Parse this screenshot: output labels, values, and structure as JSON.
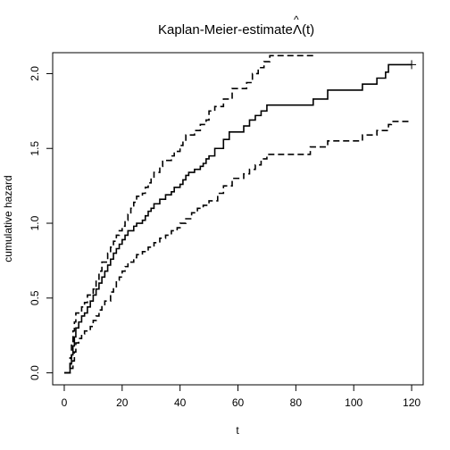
{
  "chart_data": {
    "type": "line",
    "title": "Kaplan-Meier-estimate",
    "title_symbol": "Λ",
    "title_hat": "^",
    "title_arg": "(t)",
    "xlabel": "t",
    "ylabel": "cumulative hazard",
    "xlim": [
      -4,
      124
    ],
    "ylim": [
      -0.08,
      2.14
    ],
    "x_ticks": [
      0,
      20,
      40,
      60,
      80,
      100,
      120
    ],
    "y_ticks": [
      0.0,
      0.5,
      1.0,
      1.5,
      2.0
    ],
    "x_tick_labels": [
      "0",
      "20",
      "40",
      "60",
      "80",
      "100",
      "120"
    ],
    "y_tick_labels": [
      "0.0",
      "0.5",
      "1.0",
      "1.5",
      "2.0"
    ],
    "grid": false,
    "censor_mark": {
      "x": 120,
      "y": 2.06
    },
    "series": [
      {
        "name": "estimate",
        "style": "solid",
        "steps": [
          [
            0,
            0
          ],
          [
            2,
            0.06
          ],
          [
            2.5,
            0.12
          ],
          [
            3,
            0.18
          ],
          [
            3.5,
            0.24
          ],
          [
            4,
            0.3
          ],
          [
            5,
            0.34
          ],
          [
            6,
            0.38
          ],
          [
            7,
            0.4
          ],
          [
            8,
            0.44
          ],
          [
            9,
            0.48
          ],
          [
            10,
            0.52
          ],
          [
            11,
            0.56
          ],
          [
            12,
            0.6
          ],
          [
            13,
            0.64
          ],
          [
            14,
            0.68
          ],
          [
            15,
            0.72
          ],
          [
            16,
            0.76
          ],
          [
            17,
            0.8
          ],
          [
            18,
            0.83
          ],
          [
            19,
            0.86
          ],
          [
            20,
            0.89
          ],
          [
            21,
            0.92
          ],
          [
            22,
            0.95
          ],
          [
            24,
            0.98
          ],
          [
            25,
            1.0
          ],
          [
            27,
            1.02
          ],
          [
            28,
            1.05
          ],
          [
            29,
            1.08
          ],
          [
            30,
            1.1
          ],
          [
            31,
            1.13
          ],
          [
            33,
            1.16
          ],
          [
            35,
            1.19
          ],
          [
            37,
            1.21
          ],
          [
            38,
            1.24
          ],
          [
            40,
            1.26
          ],
          [
            41,
            1.29
          ],
          [
            42,
            1.32
          ],
          [
            43,
            1.34
          ],
          [
            45,
            1.36
          ],
          [
            47,
            1.38
          ],
          [
            48,
            1.4
          ],
          [
            49,
            1.43
          ],
          [
            50,
            1.45
          ],
          [
            52,
            1.5
          ],
          [
            55,
            1.56
          ],
          [
            57,
            1.61
          ],
          [
            62,
            1.65
          ],
          [
            64,
            1.69
          ],
          [
            66,
            1.72
          ],
          [
            68,
            1.75
          ],
          [
            70,
            1.79
          ],
          [
            86,
            1.83
          ],
          [
            91,
            1.89
          ],
          [
            103,
            1.93
          ],
          [
            108,
            1.97
          ],
          [
            111,
            2.01
          ],
          [
            112,
            2.06
          ],
          [
            120,
            2.06
          ]
        ]
      },
      {
        "name": "upper confidence bound",
        "style": "dashed",
        "steps": [
          [
            0,
            0
          ],
          [
            2,
            0.1
          ],
          [
            2.5,
            0.2
          ],
          [
            3,
            0.28
          ],
          [
            3.5,
            0.34
          ],
          [
            4,
            0.4
          ],
          [
            6,
            0.44
          ],
          [
            7,
            0.47
          ],
          [
            8,
            0.52
          ],
          [
            10,
            0.56
          ],
          [
            11,
            0.62
          ],
          [
            12,
            0.68
          ],
          [
            13,
            0.74
          ],
          [
            15,
            0.8
          ],
          [
            16,
            0.84
          ],
          [
            17,
            0.88
          ],
          [
            18,
            0.92
          ],
          [
            19,
            0.95
          ],
          [
            20,
            0.98
          ],
          [
            21,
            1.02
          ],
          [
            22,
            1.06
          ],
          [
            23,
            1.1
          ],
          [
            24,
            1.14
          ],
          [
            25,
            1.18
          ],
          [
            27,
            1.2
          ],
          [
            28,
            1.24
          ],
          [
            29,
            1.27
          ],
          [
            30,
            1.3
          ],
          [
            31,
            1.34
          ],
          [
            33,
            1.38
          ],
          [
            34,
            1.42
          ],
          [
            37,
            1.45
          ],
          [
            38,
            1.48
          ],
          [
            40,
            1.52
          ],
          [
            41,
            1.55
          ],
          [
            42,
            1.59
          ],
          [
            45,
            1.62
          ],
          [
            47,
            1.66
          ],
          [
            49,
            1.69
          ],
          [
            50,
            1.75
          ],
          [
            52,
            1.78
          ],
          [
            55,
            1.83
          ],
          [
            58,
            1.9
          ],
          [
            63,
            1.94
          ],
          [
            65,
            2.0
          ],
          [
            67,
            2.04
          ],
          [
            69,
            2.08
          ],
          [
            71,
            2.12
          ],
          [
            86,
            2.12
          ]
        ]
      },
      {
        "name": "lower confidence bound",
        "style": "dashed",
        "steps": [
          [
            0,
            0
          ],
          [
            2,
            0.03
          ],
          [
            3,
            0.08
          ],
          [
            3.5,
            0.14
          ],
          [
            4,
            0.2
          ],
          [
            5,
            0.23
          ],
          [
            6,
            0.26
          ],
          [
            7,
            0.28
          ],
          [
            9,
            0.31
          ],
          [
            10,
            0.35
          ],
          [
            11,
            0.38
          ],
          [
            12,
            0.42
          ],
          [
            13,
            0.45
          ],
          [
            14,
            0.48
          ],
          [
            16,
            0.54
          ],
          [
            17,
            0.57
          ],
          [
            18,
            0.62
          ],
          [
            19,
            0.64
          ],
          [
            20,
            0.68
          ],
          [
            21,
            0.71
          ],
          [
            22,
            0.74
          ],
          [
            24,
            0.77
          ],
          [
            25,
            0.79
          ],
          [
            27,
            0.81
          ],
          [
            29,
            0.84
          ],
          [
            31,
            0.87
          ],
          [
            33,
            0.9
          ],
          [
            35,
            0.92
          ],
          [
            37,
            0.95
          ],
          [
            39,
            0.97
          ],
          [
            40,
            1.0
          ],
          [
            42,
            1.03
          ],
          [
            44,
            1.07
          ],
          [
            46,
            1.1
          ],
          [
            48,
            1.12
          ],
          [
            50,
            1.15
          ],
          [
            53,
            1.2
          ],
          [
            55,
            1.25
          ],
          [
            58,
            1.3
          ],
          [
            62,
            1.33
          ],
          [
            64,
            1.36
          ],
          [
            66,
            1.39
          ],
          [
            68,
            1.43
          ],
          [
            70,
            1.46
          ],
          [
            85,
            1.51
          ],
          [
            91,
            1.55
          ],
          [
            103,
            1.59
          ],
          [
            108,
            1.62
          ],
          [
            112,
            1.66
          ],
          [
            113,
            1.68
          ],
          [
            120,
            1.68
          ]
        ]
      }
    ]
  }
}
